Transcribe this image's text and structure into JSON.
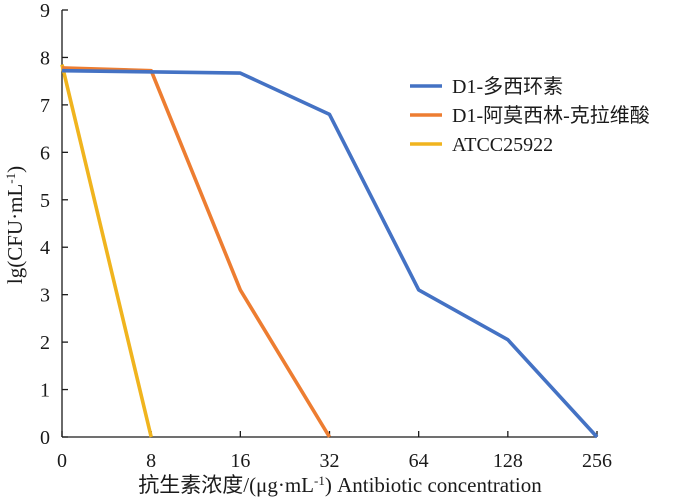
{
  "chart_data": {
    "type": "line",
    "title": "",
    "xlabel": "抗生素浓度/(μg·mL⁻¹) Antibiotic concentration",
    "ylabel": "lg(CFU·mL⁻¹)",
    "x_categories": [
      "0",
      "8",
      "16",
      "32",
      "64",
      "128",
      "256"
    ],
    "ylim": [
      0,
      9
    ],
    "y_ticks": [
      0,
      1,
      2,
      3,
      4,
      5,
      6,
      7,
      8,
      9
    ],
    "grid": false,
    "legend_position": "right",
    "series": [
      {
        "name": "D1-多西环素",
        "color": "#4472C4",
        "points": [
          {
            "x": "0",
            "y": 7.72
          },
          {
            "x": "16",
            "y": 7.67
          },
          {
            "x": "32",
            "y": 6.8
          },
          {
            "x": "64",
            "y": 3.1
          },
          {
            "x": "128",
            "y": 2.05
          },
          {
            "x": "256",
            "y": 0.0
          }
        ]
      },
      {
        "name": "D1-阿莫西林-克拉维酸",
        "color": "#ED7D31",
        "points": [
          {
            "x": "0",
            "y": 7.78
          },
          {
            "x": "8",
            "y": 7.72
          },
          {
            "x": "16",
            "y": 3.1
          },
          {
            "x": "32",
            "y": 0.0
          }
        ]
      },
      {
        "name": "ATCC25922",
        "color": "#F0B41E",
        "points": [
          {
            "x": "0",
            "y": 7.85
          },
          {
            "x": "8",
            "y": 0.0
          }
        ]
      }
    ]
  }
}
